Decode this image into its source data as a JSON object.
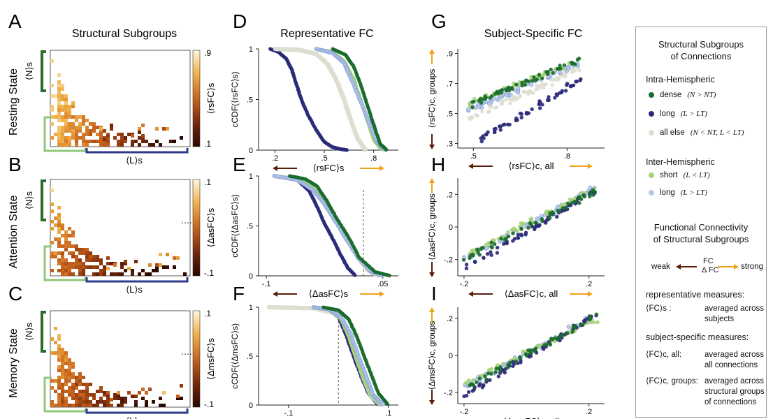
{
  "panel_letters": [
    "A",
    "B",
    "C",
    "D",
    "E",
    "F",
    "G",
    "H",
    "I"
  ],
  "column_titles": {
    "structural": "Structural Subgroups",
    "representative": "Representative FC",
    "subject_specific": "Subject-Specific FC"
  },
  "row_titles": [
    "Resting State",
    "Attention State",
    "Memory State"
  ],
  "colors": {
    "dense": "#1a6b2e",
    "long_intra": "#2b2a78",
    "all_else": "#deded0",
    "short_inter": "#a6d27a",
    "long_inter": "#b7c9ea",
    "orange": "#f0a21a",
    "brown": "#5a1e0a",
    "frame_green": "#2d6a2d",
    "frame_lightgreen": "#8fc87a",
    "frame_blue": "#2b3a8a"
  },
  "heatmaps": [
    {
      "cbar_top": ".9",
      "cbar_bottom": ".1",
      "cbar_label": "⟨rsFC⟩s",
      "mid_tick": ""
    },
    {
      "cbar_top": ".1",
      "cbar_bottom": "-.1",
      "cbar_label": "⟨ΔasFC⟩s",
      "mid_tick": "0"
    },
    {
      "cbar_top": ".1",
      "cbar_bottom": "-.1",
      "cbar_label": "⟨ΔmsFC⟩s",
      "mid_tick": "0"
    }
  ],
  "heatmap_axes": {
    "y": "⟨N⟩s",
    "x": "⟨L⟩s"
  },
  "chart_data": [
    {
      "panel": "D",
      "type": "line",
      "ylabel": "cCDF(⟨rsFC⟩s)",
      "xlabel": "⟨rsFC⟩s",
      "xticks": [
        ".2",
        ".5",
        ".8"
      ],
      "yticks": [
        "1",
        ".5",
        "0"
      ],
      "xlim": [
        0.1,
        0.95
      ],
      "ylim": [
        0,
        1
      ],
      "series": [
        {
          "name": "long",
          "x": [
            0.17,
            0.22,
            0.27,
            0.3,
            0.33,
            0.36,
            0.4,
            0.45,
            0.5,
            0.55,
            0.6,
            0.64
          ],
          "y": [
            1,
            0.97,
            0.9,
            0.8,
            0.65,
            0.5,
            0.35,
            0.2,
            0.08,
            0.03,
            0.01,
            0
          ]
        },
        {
          "name": "all else",
          "x": [
            0.2,
            0.35,
            0.45,
            0.52,
            0.57,
            0.62,
            0.66,
            0.7,
            0.75
          ],
          "y": [
            1,
            0.99,
            0.95,
            0.85,
            0.7,
            0.5,
            0.3,
            0.12,
            0
          ]
        },
        {
          "name": "short",
          "x": [
            0.45,
            0.55,
            0.62,
            0.68,
            0.72,
            0.76,
            0.8,
            0.85
          ],
          "y": [
            1,
            0.97,
            0.88,
            0.7,
            0.5,
            0.3,
            0.1,
            0
          ]
        },
        {
          "name": "long (inter)",
          "x": [
            0.45,
            0.55,
            0.62,
            0.67,
            0.72,
            0.77,
            0.82,
            0.87
          ],
          "y": [
            1,
            0.96,
            0.86,
            0.68,
            0.48,
            0.28,
            0.08,
            0
          ]
        },
        {
          "name": "dense",
          "x": [
            0.55,
            0.63,
            0.68,
            0.72,
            0.76,
            0.8,
            0.84,
            0.88
          ],
          "y": [
            1,
            0.94,
            0.82,
            0.65,
            0.45,
            0.25,
            0.06,
            0
          ]
        }
      ]
    },
    {
      "panel": "E",
      "type": "line",
      "ylabel": "cCDF(⟨ΔasFC⟩s)",
      "xlabel": "⟨ΔasFC⟩s",
      "xticks": [
        "-.1",
        ".05"
      ],
      "yticks": [
        "1",
        ".5",
        "0"
      ],
      "xlim": [
        -0.11,
        0.07
      ],
      "ylim": [
        0,
        1
      ],
      "vline": 0.025,
      "series": [
        {
          "name": "long",
          "x": [
            -0.09,
            -0.06,
            -0.045,
            -0.035,
            -0.025,
            -0.015,
            -0.005,
            0.005,
            0.015
          ],
          "y": [
            1,
            0.96,
            0.85,
            0.7,
            0.52,
            0.38,
            0.22,
            0.08,
            0
          ]
        },
        {
          "name": "all else",
          "x": [
            -0.09,
            -0.06,
            -0.04,
            -0.028,
            -0.015,
            0,
            0.015,
            0.03,
            0.045
          ],
          "y": [
            1,
            0.97,
            0.88,
            0.75,
            0.6,
            0.45,
            0.22,
            0.06,
            0
          ]
        },
        {
          "name": "short",
          "x": [
            -0.09,
            -0.06,
            -0.04,
            -0.025,
            -0.012,
            0.002,
            0.018,
            0.035,
            0.05
          ],
          "y": [
            1,
            0.97,
            0.88,
            0.74,
            0.58,
            0.4,
            0.2,
            0.05,
            0
          ]
        },
        {
          "name": "long (inter)",
          "x": [
            -0.09,
            -0.06,
            -0.04,
            -0.025,
            -0.012,
            0.002,
            0.018,
            0.035,
            0.05
          ],
          "y": [
            1,
            0.96,
            0.86,
            0.72,
            0.56,
            0.38,
            0.18,
            0.04,
            0
          ]
        },
        {
          "name": "dense",
          "x": [
            -0.07,
            -0.05,
            -0.035,
            -0.022,
            -0.01,
            0.005,
            0.02,
            0.04,
            0.06
          ],
          "y": [
            1,
            0.97,
            0.9,
            0.75,
            0.58,
            0.4,
            0.18,
            0.04,
            0
          ]
        }
      ]
    },
    {
      "panel": "F",
      "type": "line",
      "ylabel": "cCDF(⟨ΔmsFC⟩s)",
      "xlabel": "⟨ΔmsFC⟩s",
      "xticks": [
        "-.1",
        ".1"
      ],
      "yticks": [
        "1",
        ".5",
        "0"
      ],
      "xlim": [
        -0.16,
        0.12
      ],
      "ylim": [
        0,
        1
      ],
      "vline": 0.0,
      "series": [
        {
          "name": "long",
          "x": [
            -0.05,
            -0.02,
            0.0,
            0.015,
            0.03,
            0.045,
            0.06,
            0.08
          ],
          "y": [
            1,
            0.98,
            0.9,
            0.72,
            0.5,
            0.3,
            0.12,
            0
          ]
        },
        {
          "name": "all else",
          "x": [
            -0.14,
            -0.05,
            0.0,
            0.02,
            0.035,
            0.05,
            0.065,
            0.085
          ],
          "y": [
            1,
            0.99,
            0.93,
            0.75,
            0.5,
            0.28,
            0.1,
            0
          ]
        },
        {
          "name": "short",
          "x": [
            -0.05,
            -0.02,
            0.005,
            0.02,
            0.035,
            0.05,
            0.065,
            0.085
          ],
          "y": [
            1,
            0.98,
            0.88,
            0.7,
            0.48,
            0.28,
            0.1,
            0
          ]
        },
        {
          "name": "long (inter)",
          "x": [
            -0.05,
            -0.02,
            0.005,
            0.025,
            0.04,
            0.055,
            0.07,
            0.09
          ],
          "y": [
            1,
            0.98,
            0.9,
            0.72,
            0.5,
            0.3,
            0.1,
            0
          ]
        },
        {
          "name": "dense",
          "x": [
            -0.03,
            0.0,
            0.02,
            0.035,
            0.05,
            0.065,
            0.08,
            0.1
          ],
          "y": [
            1,
            0.97,
            0.88,
            0.72,
            0.52,
            0.32,
            0.12,
            0
          ]
        }
      ]
    },
    {
      "panel": "G",
      "type": "scatter",
      "ylabel": "⟨rsFC⟩c, groups",
      "xlabel": "⟨rsFC⟩c, all",
      "xticks": [
        ".5",
        ".8"
      ],
      "yticks": [
        ".9",
        ".7",
        ".5",
        ".3"
      ],
      "xlim": [
        0.45,
        0.92
      ],
      "ylim": [
        0.27,
        0.93
      ],
      "trends": [
        {
          "name": "dense",
          "x0": 0.48,
          "y0": 0.55,
          "x1": 0.84,
          "y1": 0.86
        },
        {
          "name": "long",
          "x0": 0.52,
          "y0": 0.32,
          "x1": 0.84,
          "y1": 0.72
        },
        {
          "name": "all else",
          "x0": 0.48,
          "y0": 0.46,
          "x1": 0.84,
          "y1": 0.8
        },
        {
          "name": "short",
          "x0": 0.48,
          "y0": 0.56,
          "x1": 0.84,
          "y1": 0.86
        },
        {
          "name": "long (inter)",
          "x0": 0.48,
          "y0": 0.52,
          "x1": 0.84,
          "y1": 0.83
        }
      ]
    },
    {
      "panel": "H",
      "type": "scatter",
      "ylabel": "⟨ΔasFC⟩c, groups",
      "xlabel": "⟨ΔasFC⟩c, all",
      "xticks": [
        "-.2",
        ".2"
      ],
      "yticks": [
        ".2",
        "0",
        "-.2"
      ],
      "xlim": [
        -0.22,
        0.25
      ],
      "ylim": [
        -0.3,
        0.3
      ],
      "trends": [
        {
          "name": "dense",
          "x0": -0.2,
          "y0": -0.2,
          "x1": 0.22,
          "y1": 0.22
        },
        {
          "name": "long",
          "x0": -0.2,
          "y0": -0.26,
          "x1": 0.22,
          "y1": 0.22
        },
        {
          "name": "short",
          "x0": -0.2,
          "y0": -0.18,
          "x1": 0.22,
          "y1": 0.24
        },
        {
          "name": "long (inter)",
          "x0": -0.2,
          "y0": -0.2,
          "x1": 0.22,
          "y1": 0.24
        }
      ]
    },
    {
      "panel": "I",
      "type": "scatter",
      "ylabel": "⟨ΔmsFC⟩c, groups",
      "xlabel": "⟨ΔmsFC⟩c, all",
      "xticks": [
        "-.2",
        ".2"
      ],
      "yticks": [
        ".2",
        "0",
        "-.2"
      ],
      "xlim": [
        -0.22,
        0.25
      ],
      "ylim": [
        -0.26,
        0.26
      ],
      "trends": [
        {
          "name": "dense",
          "x0": -0.2,
          "y0": -0.18,
          "x1": 0.23,
          "y1": 0.22
        },
        {
          "name": "long",
          "x0": -0.2,
          "y0": -0.22,
          "x1": 0.23,
          "y1": 0.23
        },
        {
          "name": "short",
          "x0": -0.2,
          "y0": -0.15,
          "x1": 0.23,
          "y1": 0.2
        },
        {
          "name": "long (inter)",
          "x0": -0.2,
          "y0": -0.17,
          "x1": 0.23,
          "y1": 0.22
        }
      ]
    }
  ],
  "legend": {
    "title_line1": "Structural Subgroups",
    "title_line2": "of Connections",
    "intra_heading": "Intra-Hemispheric",
    "intra_items": [
      {
        "label": "dense",
        "cond": "(N > NT)",
        "color_key": "dense"
      },
      {
        "label": "long",
        "cond": "(L > LT)",
        "color_key": "long_intra"
      },
      {
        "label": "all else",
        "cond": "(N < NT, L < LT)",
        "color_key": "all_else"
      }
    ],
    "inter_heading": "Inter-Hemispheric",
    "inter_items": [
      {
        "label": "short",
        "cond": "(L < LT)",
        "color_key": "short_inter"
      },
      {
        "label": "long",
        "cond": "(L > LT)",
        "color_key": "long_inter"
      }
    ],
    "fc_title_line1": "Functional Connectivity",
    "fc_title_line2": "of Structural Subgroups",
    "weak": "weak",
    "strong": "strong",
    "fc": "FC",
    "dfc": "Δ FC",
    "rep_heading": "representative measures:",
    "rep_symbol": "⟨FC⟩s :",
    "rep_desc": "averaged across subjects",
    "subj_heading": "subject-specific measures:",
    "subj_all_symbol": "⟨FC⟩c, all:",
    "subj_all_desc": "averaged across all connections",
    "subj_groups_symbol": "⟨FC⟩c, groups:",
    "subj_groups_desc": "averaged across structural groups of connections"
  }
}
